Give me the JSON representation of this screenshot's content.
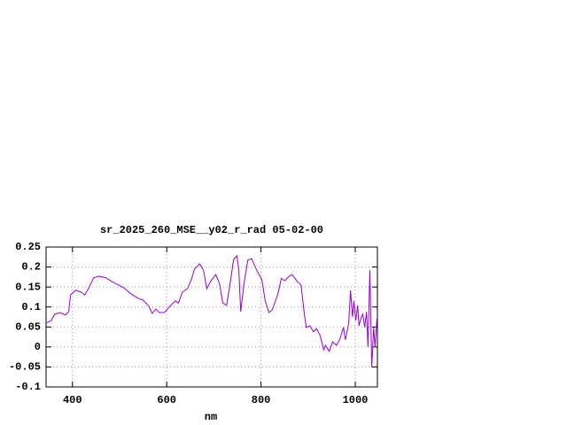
{
  "chart_data": {
    "type": "line",
    "title": "sr_2025_260_MSE__y02_r_rad 05-02-00",
    "x_label": "nm",
    "color": "#9400d3",
    "grid": true,
    "xlim": [
      344,
      1047
    ],
    "xticks": [
      400,
      600,
      800,
      1000
    ],
    "ylim": [
      -0.1,
      0.25
    ],
    "yticks": [
      0.25,
      0.2,
      0.15,
      0.1,
      0.05,
      0,
      -0.05,
      -0.1
    ],
    "x": [
      344,
      355,
      362,
      374,
      385,
      392,
      396,
      407,
      419,
      426,
      434,
      445,
      456,
      471,
      483,
      494,
      509,
      524,
      539,
      550,
      562,
      569,
      577,
      584,
      595,
      607,
      618,
      625,
      633,
      644,
      652,
      659,
      670,
      678,
      685,
      693,
      704,
      712,
      719,
      727,
      734,
      742,
      749,
      753,
      757,
      764,
      772,
      780,
      791,
      802,
      809,
      817,
      824,
      836,
      843,
      851,
      858,
      866,
      877,
      885,
      892,
      896,
      904,
      911,
      918,
      926,
      933,
      937,
      945,
      952,
      960,
      967,
      975,
      979,
      986,
      990,
      994,
      997,
      1001,
      1005,
      1008,
      1012,
      1016,
      1020,
      1024,
      1027,
      1031,
      1035,
      1039,
      1042,
      1046
    ],
    "values": [
      0.06,
      0.066,
      0.082,
      0.086,
      0.08,
      0.088,
      0.13,
      0.142,
      0.137,
      0.13,
      0.146,
      0.173,
      0.177,
      0.173,
      0.164,
      0.157,
      0.148,
      0.133,
      0.122,
      0.117,
      0.102,
      0.084,
      0.095,
      0.086,
      0.086,
      0.102,
      0.115,
      0.11,
      0.137,
      0.146,
      0.168,
      0.195,
      0.208,
      0.192,
      0.146,
      0.164,
      0.181,
      0.159,
      0.11,
      0.104,
      0.155,
      0.219,
      0.228,
      0.192,
      0.088,
      0.159,
      0.217,
      0.221,
      0.192,
      0.168,
      0.115,
      0.086,
      0.093,
      0.133,
      0.171,
      0.166,
      0.175,
      0.181,
      0.164,
      0.155,
      0.082,
      0.049,
      0.053,
      0.038,
      0.046,
      0.027,
      -0.007,
      0.004,
      -0.011,
      0.013,
      0.004,
      0.018,
      0.049,
      0.018,
      0.058,
      0.142,
      0.075,
      0.115,
      0.066,
      0.104,
      0.053,
      0.071,
      0.082,
      0.049,
      0.088,
      0,
      0.192,
      -0.051,
      0.049,
      0,
      0.071
    ]
  }
}
